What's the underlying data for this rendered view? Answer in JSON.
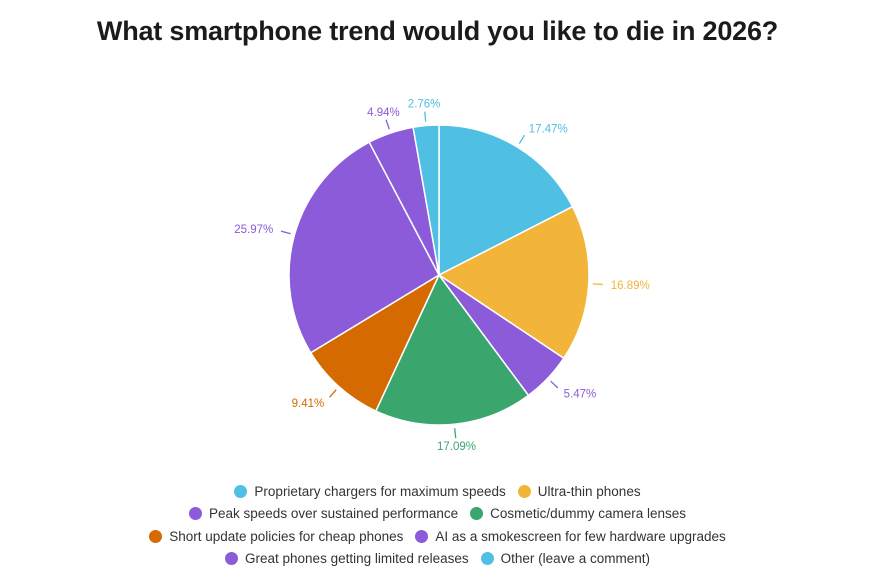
{
  "chart_data": {
    "type": "pie",
    "title": "What smartphone trend would you like to die in 2026?",
    "start_angle_deg": 0,
    "direction": "clockwise",
    "center": [
      439,
      275
    ],
    "radius": 150,
    "slices": [
      {
        "label": "Proprietary chargers for maximum speeds",
        "value": 17.47,
        "display": "17.47%",
        "color": "#4FBFE3"
      },
      {
        "label": "Ultra-thin phones",
        "value": 16.89,
        "display": "16.89%",
        "color": "#F2B53A"
      },
      {
        "label": "Peak speeds over sustained performance",
        "value": 5.47,
        "display": "5.47%",
        "color": "#8B5BD9"
      },
      {
        "label": "Cosmetic/dummy camera lenses",
        "value": 17.09,
        "display": "17.09%",
        "color": "#3AA66E"
      },
      {
        "label": "Short update policies for cheap phones",
        "value": 9.41,
        "display": "9.41%",
        "color": "#D46A00"
      },
      {
        "label": "AI as a smokescreen for few hardware upgrades",
        "value": 25.97,
        "display": "25.97%",
        "color": "#8B5BD9"
      },
      {
        "label": "Great phones getting limited releases",
        "value": 4.94,
        "display": "4.94%",
        "color": "#8B5BD9"
      },
      {
        "label": "Other (leave a comment)",
        "value": 2.76,
        "display": "2.76%",
        "color": "#4FBFE3"
      }
    ],
    "legend": {
      "position": "bottom",
      "rows": [
        [
          0,
          1
        ],
        [
          2,
          3
        ],
        [
          4,
          5
        ],
        [
          6,
          7
        ]
      ]
    }
  }
}
